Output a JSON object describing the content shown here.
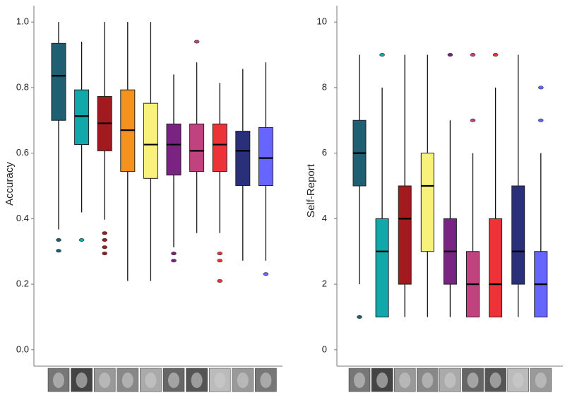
{
  "chart_data": [
    {
      "type": "box",
      "y_label": "Accuracy",
      "ylim": [
        -0.05,
        1.05
      ],
      "yticks": [
        {
          "value": 0,
          "label": "0.0"
        },
        0.2,
        0.4,
        0.6,
        0.8,
        {
          "value": 1,
          "label": "1.0"
        }
      ],
      "categories": [
        null,
        null,
        null,
        null,
        null,
        null,
        null,
        null,
        null,
        null
      ],
      "boxes": [
        {
          "color": "#1f5f73",
          "whisker_low": 0.367,
          "q1": 0.7,
          "median": 0.836,
          "q3": 0.935,
          "whisker_high": 1.0,
          "outliers": [
            0.335,
            0.302
          ]
        },
        {
          "color": "#10a8a8",
          "whisker_low": 0.419,
          "q1": 0.626,
          "median": 0.713,
          "q3": 0.793,
          "whisker_high": 0.94,
          "outliers": [
            0.335
          ]
        },
        {
          "color": "#a01a1e",
          "whisker_low": 0.397,
          "q1": 0.607,
          "median": 0.691,
          "q3": 0.773,
          "whisker_high": 1.0,
          "outliers": [
            0.356,
            0.335,
            0.313,
            0.294
          ]
        },
        {
          "color": "#f5921e",
          "whisker_low": 0.21,
          "q1": 0.544,
          "median": 0.67,
          "q3": 0.793,
          "whisker_high": 1.0,
          "outliers": []
        },
        {
          "color": "#f8f27a",
          "whisker_low": 0.21,
          "q1": 0.523,
          "median": 0.626,
          "q3": 0.752,
          "whisker_high": 1.0,
          "outliers": []
        },
        {
          "color": "#7b2382",
          "whisker_low": 0.313,
          "q1": 0.533,
          "median": 0.626,
          "q3": 0.689,
          "whisker_high": 0.84,
          "outliers": [
            0.294,
            0.272
          ]
        },
        {
          "color": "#c0437f",
          "whisker_low": 0.356,
          "q1": 0.544,
          "median": 0.607,
          "q3": 0.689,
          "whisker_high": 0.877,
          "outliers": [
            0.94
          ]
        },
        {
          "color": "#ee3338",
          "whisker_low": 0.356,
          "q1": 0.544,
          "median": 0.626,
          "q3": 0.689,
          "whisker_high": 0.814,
          "outliers": [
            0.294,
            0.272,
            0.21
          ]
        },
        {
          "color": "#2a2f7a",
          "whisker_low": 0.272,
          "q1": 0.501,
          "median": 0.607,
          "q3": 0.667,
          "whisker_high": 0.857,
          "outliers": []
        },
        {
          "color": "#6666ff",
          "whisker_low": 0.272,
          "q1": 0.501,
          "median": 0.585,
          "q3": 0.678,
          "whisker_high": 0.877,
          "outliers": [
            0.231
          ]
        }
      ]
    },
    {
      "type": "box",
      "y_label": "Self-Report",
      "ylim": [
        -0.5,
        10.5
      ],
      "yticks": [
        0,
        2,
        4,
        6,
        8,
        10
      ],
      "categories": [
        null,
        null,
        null,
        null,
        null,
        null,
        null,
        null,
        null
      ],
      "boxes": [
        {
          "color": "#1f5f73",
          "whisker_low": 2,
          "q1": 5,
          "median": 6,
          "q3": 7,
          "whisker_high": 9,
          "outliers": [
            1
          ]
        },
        {
          "color": "#10a8a8",
          "whisker_low": 1,
          "q1": 1,
          "median": 3,
          "q3": 4,
          "whisker_high": 8,
          "outliers": [
            9
          ]
        },
        {
          "color": "#a01a1e",
          "whisker_low": 1,
          "q1": 2,
          "median": 4,
          "q3": 5,
          "whisker_high": 9,
          "outliers": []
        },
        {
          "color": "#f8f27a",
          "whisker_low": 1,
          "q1": 3,
          "median": 5,
          "q3": 6,
          "whisker_high": 9,
          "outliers": []
        },
        {
          "color": "#7b2382",
          "whisker_low": 1,
          "q1": 2,
          "median": 3,
          "q3": 4,
          "whisker_high": 7,
          "outliers": [
            9
          ]
        },
        {
          "color": "#c0437f",
          "whisker_low": 1,
          "q1": 1,
          "median": 2,
          "q3": 3,
          "whisker_high": 6,
          "outliers": [
            7,
            9
          ]
        },
        {
          "color": "#ee3338",
          "whisker_low": 1,
          "q1": 1,
          "median": 2,
          "q3": 4,
          "whisker_high": 8,
          "outliers": [
            9
          ]
        },
        {
          "color": "#2a2f7a",
          "whisker_low": 1,
          "q1": 2,
          "median": 3,
          "q3": 5,
          "whisker_high": 9,
          "outliers": []
        },
        {
          "color": "#6666ff",
          "whisker_low": 1,
          "q1": 1,
          "median": 2,
          "q3": 3,
          "whisker_high": 6,
          "outliers": [
            7,
            8
          ]
        }
      ]
    }
  ]
}
